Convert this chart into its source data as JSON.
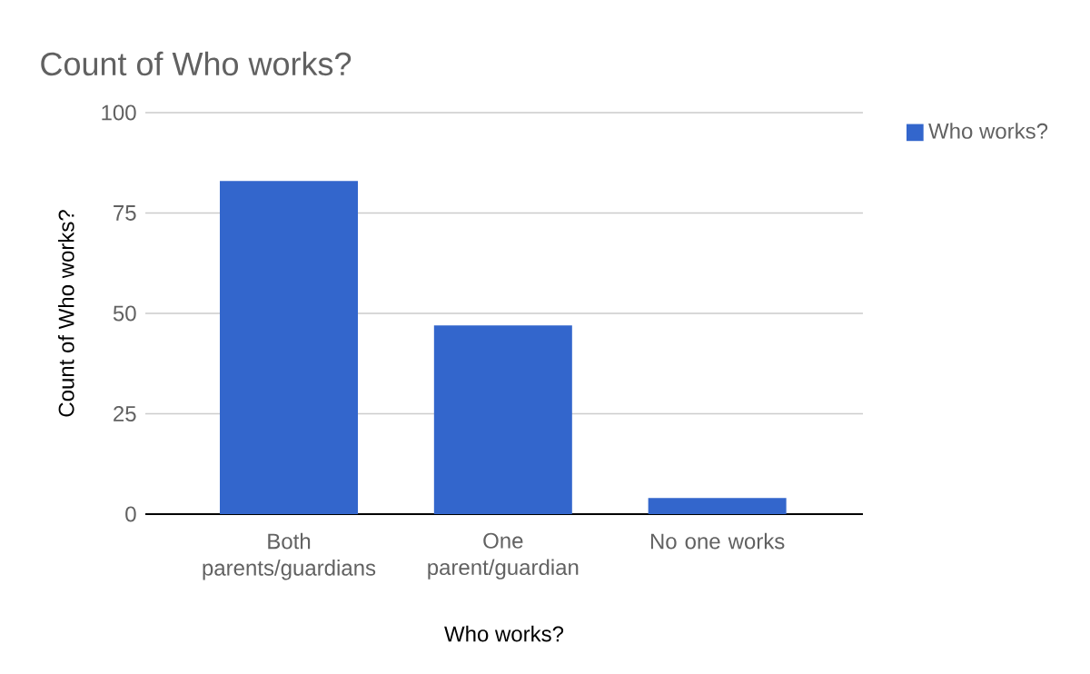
{
  "chart_data": {
    "type": "bar",
    "title": "Count of Who works?",
    "xlabel": "Who works?",
    "ylabel": "Count of Who works?",
    "categories": [
      "Both parents/guardians",
      "One parent/guardian",
      "No one works"
    ],
    "series": [
      {
        "name": "Who works?",
        "color": "#3366cc",
        "values": [
          83,
          47,
          4
        ]
      }
    ],
    "ylim": [
      0,
      100
    ],
    "yticks": [
      0,
      25,
      50,
      75,
      100
    ],
    "grid": "y",
    "legend": "top right"
  }
}
